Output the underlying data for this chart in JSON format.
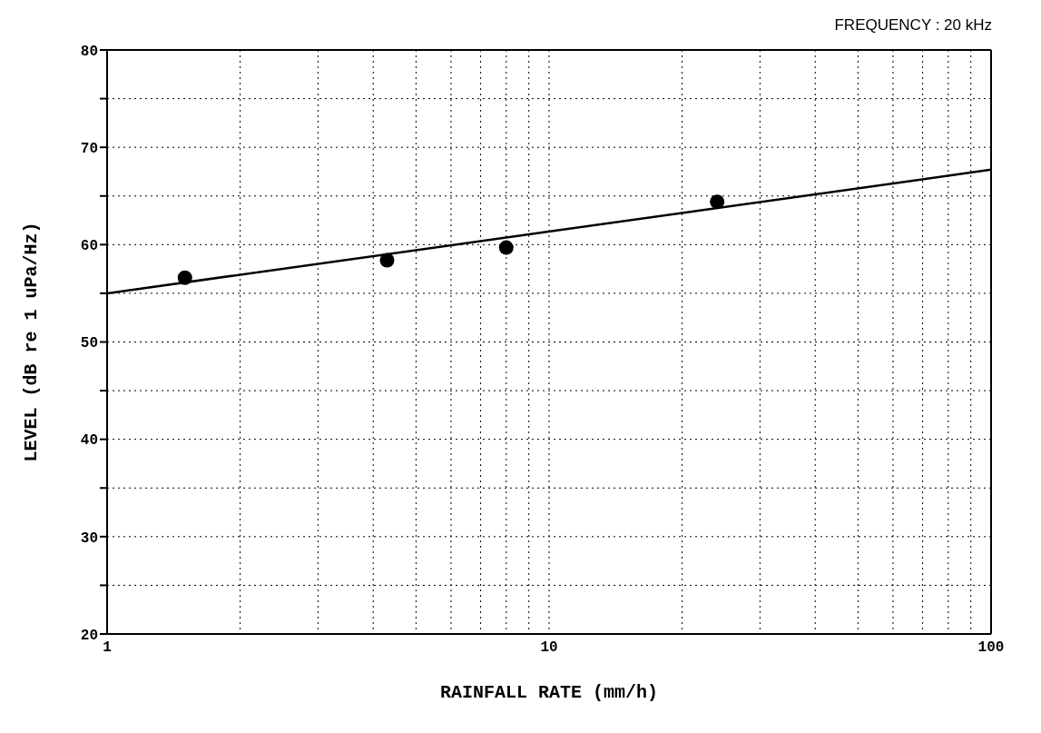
{
  "chart_data": {
    "type": "scatter",
    "xlabel": "RAINFALL RATE (mm/h)",
    "ylabel": "LEVEL (dB re 1 uPa/Hz)",
    "annotations": [
      "FREQUENCY : 20 kHz"
    ],
    "log": "x",
    "grid": true,
    "legend": false,
    "marker": "circle",
    "xlim": [
      1,
      100
    ],
    "ylim": [
      20,
      80
    ],
    "xticks": [
      1,
      {
        "value": 2,
        "label": null
      },
      {
        "value": 3,
        "label": null
      },
      {
        "value": 4,
        "label": null
      },
      {
        "value": 5,
        "label": null
      },
      {
        "value": 6,
        "label": null
      },
      {
        "value": 7,
        "label": null
      },
      {
        "value": 8,
        "label": null
      },
      {
        "value": 9,
        "label": null
      },
      10,
      {
        "value": 20,
        "label": null
      },
      {
        "value": 30,
        "label": null
      },
      {
        "value": 40,
        "label": null
      },
      {
        "value": 50,
        "label": null
      },
      {
        "value": 60,
        "label": null
      },
      {
        "value": 70,
        "label": null
      },
      {
        "value": 80,
        "label": null
      },
      {
        "value": 90,
        "label": null
      },
      100
    ],
    "yticks": [
      20,
      {
        "value": 25,
        "label": null
      },
      30,
      {
        "value": 35,
        "label": null
      },
      40,
      {
        "value": 45,
        "label": null
      },
      50,
      {
        "value": 55,
        "label": null
      },
      60,
      {
        "value": 65,
        "label": null
      },
      70,
      {
        "value": 75,
        "label": null
      },
      80
    ],
    "series": [
      {
        "color": "#000000",
        "x": [
          1.5,
          4.3,
          8.0,
          24
        ],
        "values": [
          56.6,
          58.4,
          59.7,
          64.4
        ]
      },
      {
        "type": "line",
        "color": "#000000",
        "marker": "none",
        "line_style": "solid",
        "x": [
          1,
          100
        ],
        "values": [
          55.0,
          67.7
        ]
      }
    ]
  }
}
